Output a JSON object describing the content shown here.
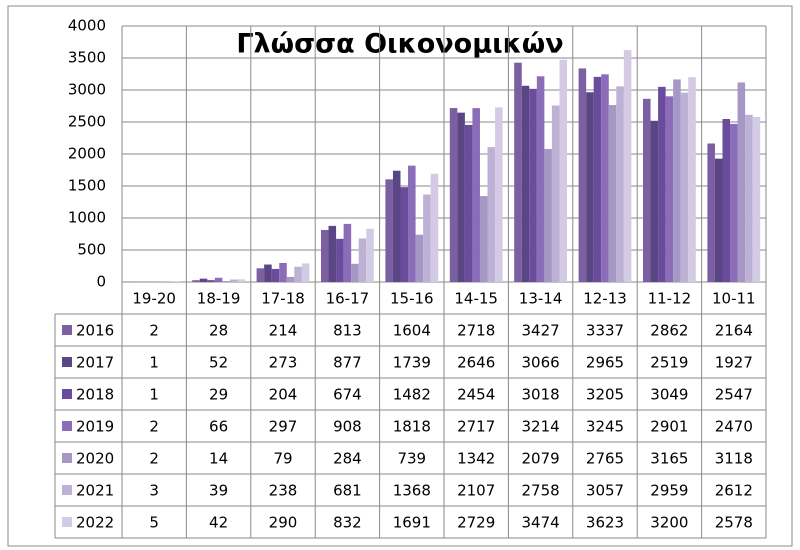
{
  "chart_data": {
    "type": "bar",
    "title": "Γλώσσα Οικονομικών",
    "categories": [
      "19-20",
      "18-19",
      "17-18",
      "16-17",
      "15-16",
      "14-15",
      "13-14",
      "12-13",
      "11-12",
      "10-11"
    ],
    "series": [
      {
        "name": "2016",
        "color": "#7b5fa0",
        "values": [
          2,
          28,
          214,
          813,
          1604,
          2718,
          3427,
          3337,
          2862,
          2164
        ]
      },
      {
        "name": "2017",
        "color": "#5a4585",
        "values": [
          1,
          52,
          273,
          877,
          1739,
          2646,
          3066,
          2965,
          2519,
          1927
        ]
      },
      {
        "name": "2018",
        "color": "#6a4c9c",
        "values": [
          1,
          29,
          204,
          674,
          1482,
          2454,
          3018,
          3205,
          3049,
          2547
        ]
      },
      {
        "name": "2019",
        "color": "#8b6cb8",
        "values": [
          2,
          66,
          297,
          908,
          1818,
          2717,
          3214,
          3245,
          2901,
          2470
        ]
      },
      {
        "name": "2020",
        "color": "#a697c4",
        "values": [
          2,
          14,
          79,
          284,
          739,
          1342,
          2079,
          2765,
          3165,
          3118
        ]
      },
      {
        "name": "2021",
        "color": "#bdb1d6",
        "values": [
          3,
          39,
          238,
          681,
          1368,
          2107,
          2758,
          3057,
          2959,
          2612
        ]
      },
      {
        "name": "2022",
        "color": "#d3cbe3",
        "values": [
          5,
          42,
          290,
          832,
          1691,
          2729,
          3474,
          3623,
          3200,
          2578
        ]
      }
    ],
    "ylim": [
      0,
      4000
    ],
    "yticks": [
      0,
      500,
      1000,
      1500,
      2000,
      2500,
      3000,
      3500,
      4000
    ],
    "grid": true
  }
}
